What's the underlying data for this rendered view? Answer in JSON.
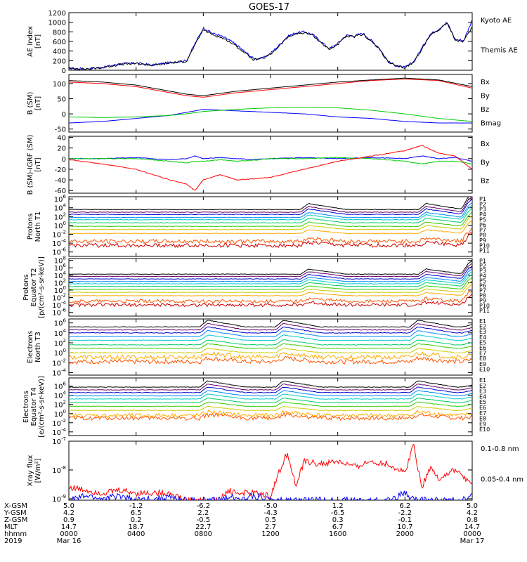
{
  "title": "GOES-17",
  "colors": {
    "blue": "#0000ff",
    "green": "#00cc00",
    "red": "#ff0000",
    "black": "#000000",
    "channels": [
      "#000000",
      "#660066",
      "#0000cc",
      "#0088ff",
      "#00cccc",
      "#00cc66",
      "#33cc00",
      "#cccc00",
      "#ffaa00",
      "#ff5500",
      "#cc0000"
    ]
  },
  "chart_data": [
    {
      "type": "line",
      "id": "ae",
      "ylabel": [
        "AE Index",
        "[nT]"
      ],
      "yticks": [
        "1200",
        "1000",
        "800",
        "600",
        "400",
        "200",
        "0"
      ],
      "ylim": [
        0,
        1200
      ],
      "legend": [
        {
          "name": "Kyoto AE",
          "color": "#0000ff"
        },
        {
          "name": "Themis AE",
          "color": "#000000"
        }
      ],
      "x_hours": [
        0,
        1,
        2,
        3,
        4,
        5,
        6,
        6.5,
        7,
        7.5,
        8,
        8.5,
        9,
        9.5,
        10,
        11,
        11.5,
        12,
        12.5,
        13,
        13.5,
        14,
        14.5,
        15,
        15.5,
        16,
        16.5,
        17,
        17.5,
        18,
        18.5,
        19,
        19.5,
        20,
        20.5,
        21,
        21.5,
        22,
        22.5,
        23,
        23.5,
        24
      ],
      "series": [
        {
          "name": "Kyoto AE",
          "values": [
            40,
            30,
            60,
            130,
            150,
            110,
            160,
            180,
            200,
            550,
            880,
            780,
            720,
            640,
            520,
            240,
            250,
            350,
            520,
            700,
            780,
            800,
            750,
            600,
            450,
            560,
            730,
            720,
            770,
            620,
            450,
            180,
            90,
            60,
            170,
            460,
            750,
            860,
            1000,
            640,
            620,
            1050
          ]
        },
        {
          "name": "Themis AE",
          "values": [
            35,
            25,
            55,
            120,
            140,
            100,
            150,
            170,
            190,
            520,
            850,
            750,
            690,
            610,
            490,
            220,
            240,
            330,
            500,
            680,
            760,
            780,
            730,
            580,
            430,
            540,
            700,
            700,
            750,
            600,
            430,
            170,
            80,
            55,
            160,
            440,
            730,
            840,
            990,
            620,
            600,
            900
          ]
        }
      ]
    },
    {
      "type": "line",
      "id": "bsm",
      "ylabel": [
        "B (SM)",
        "[nT]"
      ],
      "yticks": [
        "100",
        "50",
        "0",
        "-50"
      ],
      "ylim": [
        -60,
        130
      ],
      "legend": [
        {
          "name": "Bx",
          "color": "#0000ff"
        },
        {
          "name": "By",
          "color": "#00cc00"
        },
        {
          "name": "Bz",
          "color": "#ff0000"
        },
        {
          "name": "Bmag",
          "color": "#000000"
        }
      ],
      "x_hours": [
        0,
        2,
        4,
        6,
        7,
        8,
        10,
        12,
        14,
        16,
        18,
        20,
        22,
        24
      ],
      "series": [
        {
          "name": "Bx",
          "values": [
            -30,
            -25,
            -15,
            -5,
            5,
            15,
            10,
            5,
            0,
            -10,
            -15,
            -25,
            -30,
            -30
          ]
        },
        {
          "name": "By",
          "values": [
            -10,
            -12,
            -10,
            -5,
            0,
            8,
            15,
            20,
            22,
            20,
            12,
            0,
            -15,
            -25
          ]
        },
        {
          "name": "Bz",
          "values": [
            105,
            100,
            90,
            70,
            60,
            55,
            70,
            80,
            90,
            100,
            110,
            115,
            110,
            85
          ]
        },
        {
          "name": "Bmag",
          "values": [
            110,
            105,
            95,
            75,
            65,
            60,
            75,
            85,
            95,
            105,
            112,
            118,
            112,
            90
          ]
        }
      ]
    },
    {
      "type": "line",
      "id": "bigrf",
      "ylabel": [
        "B (SM)-IGRF (SM)",
        "[nT]"
      ],
      "yticks": [
        "40",
        "20",
        "0",
        "-20",
        "-40",
        "-60"
      ],
      "ylim": [
        -65,
        42
      ],
      "legend": [
        {
          "name": "Bx",
          "color": "#0000ff"
        },
        {
          "name": "By",
          "color": "#00cc00"
        },
        {
          "name": "Bz",
          "color": "#ff0000"
        }
      ],
      "x_hours": [
        0,
        2,
        4,
        6,
        7,
        7.5,
        8,
        9,
        10,
        11,
        12,
        14,
        16,
        18,
        20,
        21,
        22,
        23,
        24
      ],
      "series": [
        {
          "name": "Bx",
          "values": [
            0,
            0,
            2,
            -2,
            0,
            5,
            0,
            2,
            0,
            -2,
            0,
            2,
            0,
            2,
            0,
            5,
            0,
            2,
            -5
          ]
        },
        {
          "name": "By",
          "values": [
            0,
            0,
            0,
            -5,
            -8,
            -5,
            -5,
            -2,
            -5,
            -3,
            0,
            0,
            2,
            0,
            -5,
            -10,
            -5,
            -5,
            -10
          ]
        },
        {
          "name": "Bz",
          "values": [
            -2,
            -10,
            -20,
            -40,
            -48,
            -60,
            -40,
            -30,
            -40,
            -38,
            -35,
            -20,
            -5,
            5,
            15,
            25,
            10,
            5,
            -20
          ]
        }
      ]
    },
    {
      "type": "line",
      "id": "protons_north",
      "log": true,
      "ylabel": [
        "Protons",
        "North T1"
      ],
      "yticks": [
        "10^6",
        "10^4",
        "10^2",
        "10^0",
        "10^-2",
        "10^-4",
        "10^-6"
      ],
      "ylim_exp": [
        -7,
        6.5
      ],
      "legend": [
        "P1",
        "P2",
        "P3",
        "P4",
        "P5",
        "P6",
        "P7",
        "P8",
        "P9",
        "P10",
        "P11"
      ],
      "base_log": [
        3.6,
        3.0,
        2.5,
        1.8,
        1.3,
        0.6,
        -0.2,
        -0.9,
        -1.8,
        -3.6,
        -4.5
      ],
      "event_hours": [
        14.0,
        21.0,
        23.5
      ]
    },
    {
      "type": "line",
      "id": "protons_equator",
      "log": true,
      "ylabel": [
        "Protons",
        "Equator T2",
        "[p/(cm²-s-sr-keV)]"
      ],
      "yticks": [
        "10^8",
        "10^6",
        "10^4",
        "10^2",
        "10^0",
        "10^-2",
        "10^-4",
        "10^-6"
      ],
      "ylim_exp": [
        -7,
        8.5
      ],
      "legend": [
        "P1",
        "P2",
        "P3",
        "P4",
        "P5",
        "P6",
        "P7",
        "P8",
        "P9",
        "P10",
        "P11"
      ],
      "base_log": [
        4.3,
        3.7,
        3.0,
        2.3,
        1.7,
        1.0,
        0.2,
        -0.6,
        -1.5,
        -3.0,
        -4.0
      ],
      "event_hours": [
        14.0,
        21.0,
        23.5
      ]
    },
    {
      "type": "line",
      "id": "electrons_north",
      "log": true,
      "ylabel": [
        "Electrons",
        "North T3"
      ],
      "yticks": [
        "10^6",
        "10^4",
        "10^2",
        "10^0",
        "10^-2",
        "10^-4"
      ],
      "ylim_exp": [
        -4.5,
        6.8
      ],
      "legend": [
        "E1",
        "E2",
        "E3",
        "E4",
        "E5",
        "E6",
        "E7",
        "E8",
        "E9",
        "E10"
      ],
      "base_log": [
        5.2,
        4.6,
        4.0,
        3.3,
        2.5,
        1.6,
        0.9,
        0.0,
        -0.9,
        -1.8
      ],
      "event_hours": [
        8.0,
        12.5,
        20.5
      ]
    },
    {
      "type": "line",
      "id": "electrons_equator",
      "log": true,
      "ylabel": [
        "Electrons",
        "Equator T4",
        "[e/(cm²-s-sr-keV)]"
      ],
      "yticks": [
        "10^6",
        "10^4",
        "10^2",
        "10^0",
        "10^-2",
        "10^-4"
      ],
      "ylim_exp": [
        -4.8,
        7.8
      ],
      "legend": [
        "E1",
        "E2",
        "E3",
        "E4",
        "E5",
        "E6",
        "E7",
        "E8",
        "E9",
        "E10"
      ],
      "base_log": [
        5.8,
        5.2,
        4.6,
        3.9,
        3.2,
        2.4,
        1.6,
        0.7,
        -0.4,
        -1.0
      ],
      "event_hours": [
        8.0,
        12.5,
        20.5
      ]
    },
    {
      "type": "line",
      "id": "xray",
      "log": true,
      "ylabel": [
        "Xray flux",
        "[W/m²]"
      ],
      "yticks": [
        "10^-7",
        "10^-8",
        "10^-9"
      ],
      "ylim_exp": [
        -9.05,
        -7
      ],
      "legend": [
        {
          "name": "0.1-0.8 nm",
          "color": "#ff0000"
        },
        {
          "name": "0.05-0.4 nm",
          "color": "#0000ff"
        }
      ],
      "x_hours": [
        0,
        1,
        2,
        3,
        4,
        6,
        6.9,
        9,
        9.5,
        10,
        11,
        12,
        12.5,
        13,
        13.2,
        13.5,
        14,
        15,
        16,
        17,
        18,
        19,
        20,
        20.5,
        21,
        21.5,
        22,
        23,
        24
      ],
      "series": [
        {
          "name": "0.1-0.8 nm",
          "values": [
            -8.6,
            -8.7,
            -8.8,
            -8.7,
            -8.8,
            -8.8,
            -9.05,
            -9.05,
            -8.7,
            -8.8,
            -8.8,
            -8.9,
            -8.1,
            -7.4,
            -7.8,
            -8.6,
            -7.7,
            -7.8,
            -7.7,
            -7.9,
            -7.7,
            -7.8,
            -8.1,
            -7.1,
            -8.6,
            -7.9,
            -8.3,
            -8.0,
            -8.5
          ]
        },
        {
          "name": "0.05-0.4 nm",
          "values": [
            -9.05,
            -8.9,
            -9.0,
            -8.9,
            -9.05,
            -8.95,
            -9.05,
            -9.05,
            -8.9,
            -9.0,
            -8.9,
            -9.0,
            -9.05,
            -9.05,
            -9.05,
            -9.05,
            -9.05,
            -9.05,
            -9.05,
            -9.05,
            -9.05,
            -9.05,
            -8.8,
            -9.0,
            -9.05,
            -9.05,
            -9.05,
            -9.05,
            -8.9
          ]
        }
      ]
    }
  ],
  "x_axis": {
    "labels": [
      "X-GSM",
      "Y-GSM",
      "Z-GSM",
      "MLT",
      "hhmm",
      "2019"
    ],
    "columns": [
      [
        "5.0",
        "4.2",
        "0.9",
        "14.7",
        "0000",
        "Mar 16"
      ],
      [
        "-1.2",
        "6.5",
        "0.2",
        "18.7",
        "0400",
        ""
      ],
      [
        "-6.2",
        "2.2",
        "-0.5",
        "22.7",
        "0800",
        ""
      ],
      [
        "-5.0",
        "-4.3",
        "0.5",
        "2.7",
        "1200",
        ""
      ],
      [
        "1.2",
        "-6.5",
        "0.3",
        "6.7",
        "1600",
        ""
      ],
      [
        "6.2",
        "-2.2",
        "-0.1",
        "10.7",
        "2000",
        ""
      ],
      [
        "5.0",
        "4.2",
        "0.8",
        "14.7",
        "0000",
        "Mar 17"
      ]
    ]
  }
}
